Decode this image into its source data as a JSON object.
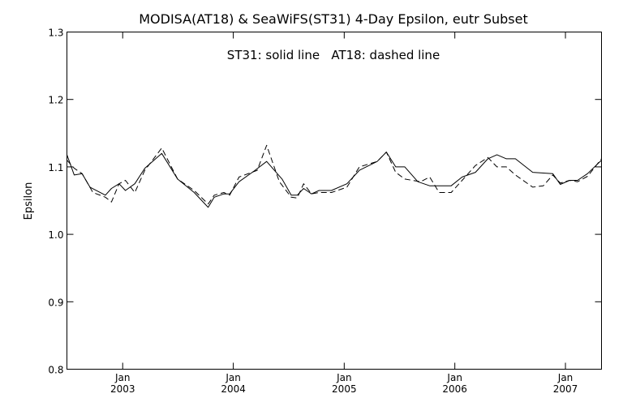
{
  "chart_data": {
    "type": "line",
    "title": "MODISA(AT18) & SeaWiFS(ST31) 4-Day Epsilon, eutr Subset",
    "annotation": "ST31: solid line   AT18: dashed line",
    "ylabel": "Epsilon",
    "xlabel": "",
    "ylim": [
      0.8,
      1.3
    ],
    "yticks": [
      {
        "value": 0.8,
        "label": "0.8"
      },
      {
        "value": 0.9,
        "label": "0.9"
      },
      {
        "value": 1.0,
        "label": "1.0"
      },
      {
        "value": 1.1,
        "label": "1.1"
      },
      {
        "value": 1.2,
        "label": "1.2"
      },
      {
        "value": 1.3,
        "label": "1.3"
      }
    ],
    "xlim": [
      "2002-07-01",
      "2007-04-30"
    ],
    "xticks": [
      {
        "date": "2003-01-01",
        "month": "Jan",
        "year": "2003"
      },
      {
        "date": "2004-01-01",
        "month": "Jan",
        "year": "2004"
      },
      {
        "date": "2005-01-01",
        "month": "Jan",
        "year": "2005"
      },
      {
        "date": "2006-01-01",
        "month": "Jan",
        "year": "2006"
      },
      {
        "date": "2007-01-01",
        "month": "Jan",
        "year": "2007"
      }
    ],
    "series": [
      {
        "name": "ST31",
        "style": "solid",
        "color": "#000000",
        "points": [
          [
            "2002-07-01",
            1.118
          ],
          [
            "2002-07-25",
            1.088
          ],
          [
            "2002-08-20",
            1.09
          ],
          [
            "2002-09-15",
            1.07
          ],
          [
            "2002-11-05",
            1.058
          ],
          [
            "2002-11-25",
            1.068
          ],
          [
            "2002-12-20",
            1.075
          ],
          [
            "2003-01-10",
            1.065
          ],
          [
            "2003-02-10",
            1.075
          ],
          [
            "2003-03-15",
            1.098
          ],
          [
            "2003-05-10",
            1.12
          ],
          [
            "2003-07-01",
            1.082
          ],
          [
            "2003-08-25",
            1.062
          ],
          [
            "2003-10-10",
            1.04
          ],
          [
            "2003-10-30",
            1.055
          ],
          [
            "2003-12-01",
            1.06
          ],
          [
            "2003-12-20",
            1.06
          ],
          [
            "2004-01-20",
            1.078
          ],
          [
            "2004-03-10",
            1.094
          ],
          [
            "2004-04-20",
            1.108
          ],
          [
            "2004-06-10",
            1.082
          ],
          [
            "2004-07-10",
            1.058
          ],
          [
            "2004-07-30",
            1.058
          ],
          [
            "2004-08-20",
            1.068
          ],
          [
            "2004-09-15",
            1.06
          ],
          [
            "2004-10-10",
            1.065
          ],
          [
            "2004-11-20",
            1.065
          ],
          [
            "2005-01-10",
            1.075
          ],
          [
            "2005-02-20",
            1.095
          ],
          [
            "2005-04-20",
            1.108
          ],
          [
            "2005-05-20",
            1.122
          ],
          [
            "2005-06-20",
            1.1
          ],
          [
            "2005-07-20",
            1.1
          ],
          [
            "2005-09-01",
            1.078
          ],
          [
            "2005-10-10",
            1.072
          ],
          [
            "2005-11-20",
            1.072
          ],
          [
            "2005-12-20",
            1.072
          ],
          [
            "2006-01-25",
            1.085
          ],
          [
            "2006-03-10",
            1.092
          ],
          [
            "2006-04-20",
            1.112
          ],
          [
            "2006-05-20",
            1.118
          ],
          [
            "2006-06-20",
            1.112
          ],
          [
            "2006-07-20",
            1.112
          ],
          [
            "2006-09-15",
            1.092
          ],
          [
            "2006-11-20",
            1.09
          ],
          [
            "2006-12-15",
            1.074
          ],
          [
            "2007-01-15",
            1.08
          ],
          [
            "2007-02-10",
            1.08
          ],
          [
            "2007-03-15",
            1.09
          ],
          [
            "2007-04-30",
            1.11
          ]
        ]
      },
      {
        "name": "AT18",
        "style": "dashed",
        "color": "#000000",
        "points": [
          [
            "2002-07-01",
            1.11
          ],
          [
            "2002-07-25",
            1.098
          ],
          [
            "2002-08-20",
            1.09
          ],
          [
            "2002-09-25",
            1.062
          ],
          [
            "2002-11-05",
            1.055
          ],
          [
            "2002-11-25",
            1.048
          ],
          [
            "2002-12-20",
            1.075
          ],
          [
            "2003-01-10",
            1.08
          ],
          [
            "2003-02-10",
            1.062
          ],
          [
            "2003-03-15",
            1.095
          ],
          [
            "2003-05-10",
            1.128
          ],
          [
            "2003-07-01",
            1.082
          ],
          [
            "2003-08-25",
            1.065
          ],
          [
            "2003-10-10",
            1.045
          ],
          [
            "2003-10-30",
            1.058
          ],
          [
            "2003-12-01",
            1.062
          ],
          [
            "2003-12-20",
            1.058
          ],
          [
            "2004-01-20",
            1.085
          ],
          [
            "2004-03-20",
            1.095
          ],
          [
            "2004-04-20",
            1.132
          ],
          [
            "2004-06-01",
            1.078
          ],
          [
            "2004-07-10",
            1.055
          ],
          [
            "2004-07-30",
            1.054
          ],
          [
            "2004-08-20",
            1.075
          ],
          [
            "2004-09-15",
            1.06
          ],
          [
            "2004-10-10",
            1.062
          ],
          [
            "2004-11-20",
            1.062
          ],
          [
            "2005-01-10",
            1.07
          ],
          [
            "2005-02-20",
            1.1
          ],
          [
            "2005-04-20",
            1.108
          ],
          [
            "2005-05-20",
            1.122
          ],
          [
            "2005-06-20",
            1.092
          ],
          [
            "2005-07-20",
            1.082
          ],
          [
            "2005-09-10",
            1.078
          ],
          [
            "2005-10-10",
            1.085
          ],
          [
            "2005-11-10",
            1.062
          ],
          [
            "2005-12-20",
            1.062
          ],
          [
            "2006-01-25",
            1.08
          ],
          [
            "2006-03-10",
            1.102
          ],
          [
            "2006-04-20",
            1.114
          ],
          [
            "2006-05-20",
            1.1
          ],
          [
            "2006-06-20",
            1.1
          ],
          [
            "2006-07-20",
            1.088
          ],
          [
            "2006-09-15",
            1.07
          ],
          [
            "2006-10-20",
            1.072
          ],
          [
            "2006-11-20",
            1.088
          ],
          [
            "2006-12-15",
            1.076
          ],
          [
            "2007-01-15",
            1.08
          ],
          [
            "2007-02-10",
            1.078
          ],
          [
            "2007-03-15",
            1.086
          ],
          [
            "2007-04-30",
            1.112
          ]
        ]
      }
    ]
  }
}
